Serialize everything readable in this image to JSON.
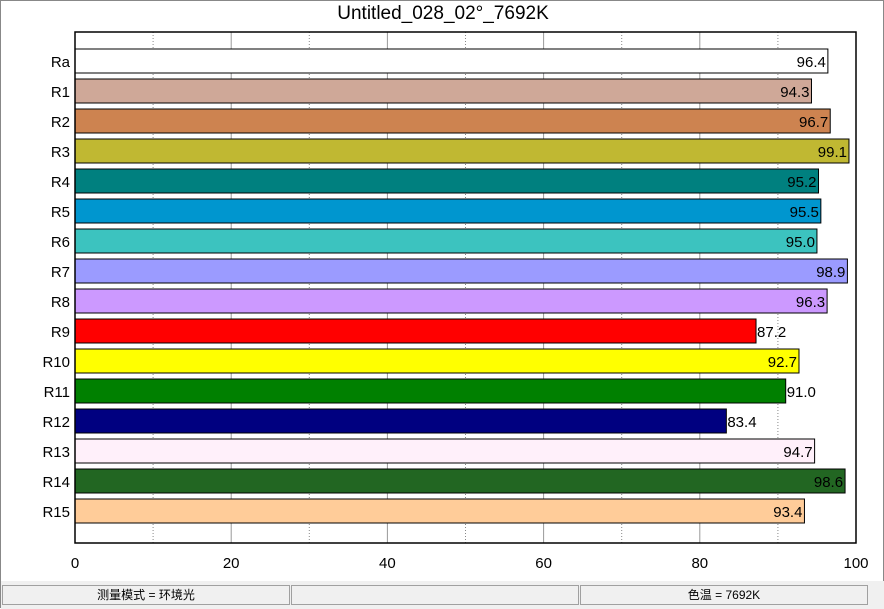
{
  "chart_data": {
    "type": "bar",
    "orientation": "horizontal",
    "title": "Untitled_028_02°_7692K",
    "categories": [
      "Ra",
      "R1",
      "R2",
      "R3",
      "R4",
      "R5",
      "R6",
      "R7",
      "R8",
      "R9",
      "R10",
      "R11",
      "R12",
      "R13",
      "R14",
      "R15"
    ],
    "values": [
      96.4,
      94.3,
      96.7,
      99.1,
      95.2,
      95.5,
      95.0,
      98.9,
      96.3,
      87.2,
      92.7,
      91.0,
      83.4,
      94.7,
      98.6,
      93.4
    ],
    "labels": [
      "96.4",
      "94.3",
      "96.7",
      "99.1",
      "95.2",
      "95.5",
      "95.0",
      "98.9",
      "96.3",
      "87.2",
      "92.7",
      "91.0",
      "83.4",
      "94.7",
      "98.6",
      "93.4"
    ],
    "colors": [
      "#ffffff",
      "#cfa898",
      "#cd8350",
      "#c0b832",
      "#00807f",
      "#0096cf",
      "#3cc3bf",
      "#9b9bff",
      "#cc99ff",
      "#ff0000",
      "#ffff00",
      "#008000",
      "#000080",
      "#fff0fa",
      "#226622",
      "#ffcc99"
    ],
    "xlim": [
      0,
      100
    ],
    "xticks": [
      "0",
      "20",
      "40",
      "60",
      "80",
      "100"
    ],
    "grid": true
  },
  "status": {
    "left": "测量模式 = 环境光",
    "middle": "",
    "right": "色温 = 7692K"
  }
}
